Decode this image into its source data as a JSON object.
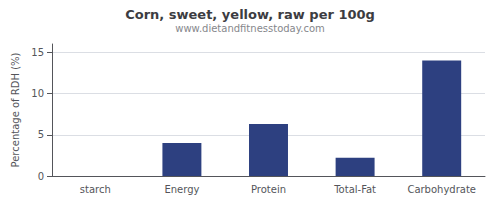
{
  "chart_data": {
    "type": "bar",
    "title": "Corn, sweet, yellow, raw per 100g",
    "subtitle": "www.dietandfitnesstoday.com",
    "categories": [
      "starch",
      "Energy",
      "Protein",
      "Total-Fat",
      "Carbohydrate"
    ],
    "values": [
      0,
      4.0,
      6.3,
      2.2,
      14.0
    ],
    "color": "#2d4080",
    "ylabel": "Percentage of RDH (%)",
    "ylim": [
      0,
      16
    ],
    "yticks": [
      0,
      5,
      10,
      15
    ],
    "grid": true
  }
}
